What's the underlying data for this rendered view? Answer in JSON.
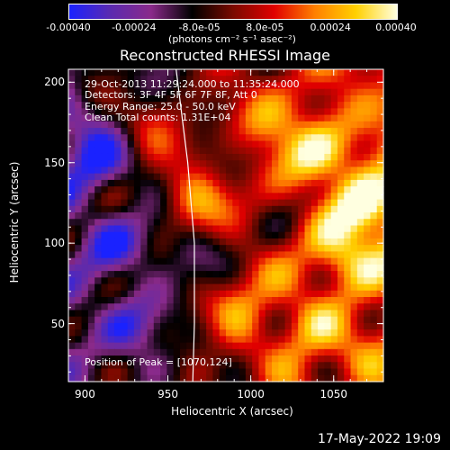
{
  "colorbar": {
    "labels": [
      "-0.00040",
      "-0.00024",
      "-8.0e-05",
      "8.0e-05",
      "0.00024",
      "0.00040"
    ],
    "units": "(photons cm⁻² s⁻¹ asec⁻²)",
    "colors": [
      "#1a22ff",
      "#5a2ab0",
      "#8a2a8a",
      "#000000",
      "#7a0a00",
      "#e00000",
      "#ff8000",
      "#ffd000",
      "#ffffe0"
    ]
  },
  "annotations": {
    "time": "29-Oct-2013 11:29:24.000 to 11:35:24.000",
    "detectors": "Detectors: 3F 4F 5F 6F 7F 8F, Att 0",
    "energy": "Energy Range: 25.0 - 50.0 keV",
    "clean": "Clean     Total counts: 1.31E+04",
    "peak": "Position of Peak = [1070,124]"
  },
  "timestamp": "17-May-2022 19:09",
  "chart_data": {
    "type": "heatmap",
    "title": "Reconstructed RHESSI Image",
    "xlabel": "Heliocentric X (arcsec)",
    "ylabel": "Heliocentric Y (arcsec)",
    "xlim": [
      890,
      1080
    ],
    "ylim": [
      14,
      208
    ],
    "xticks": [
      "900",
      "950",
      "1000",
      "1050"
    ],
    "yticks": [
      "50",
      "100",
      "150",
      "200"
    ],
    "peak": {
      "x": 1070,
      "y": 124
    },
    "hotspots": [
      {
        "x": 965,
        "y": 127,
        "value": 0.0004
      },
      {
        "x": 1040,
        "y": 155,
        "value": 0.00036
      },
      {
        "x": 1055,
        "y": 90,
        "value": 0.00034
      },
      {
        "x": 1070,
        "y": 124,
        "value": 0.0004
      },
      {
        "x": 995,
        "y": 60,
        "value": 0.00028
      },
      {
        "x": 1010,
        "y": 175,
        "value": 0.00026
      },
      {
        "x": 940,
        "y": 170,
        "value": 0.00022
      },
      {
        "x": 1030,
        "y": 40,
        "value": 0.00024
      },
      {
        "x": 920,
        "y": 100,
        "value": -0.00022
      },
      {
        "x": 905,
        "y": 150,
        "value": -0.0003
      },
      {
        "x": 930,
        "y": 50,
        "value": -0.00026
      },
      {
        "x": 960,
        "y": 95,
        "value": -0.00018
      }
    ],
    "limb": [
      [
        955,
        208
      ],
      [
        962,
        150
      ],
      [
        966,
        100
      ],
      [
        966,
        50
      ],
      [
        965,
        14
      ]
    ]
  }
}
